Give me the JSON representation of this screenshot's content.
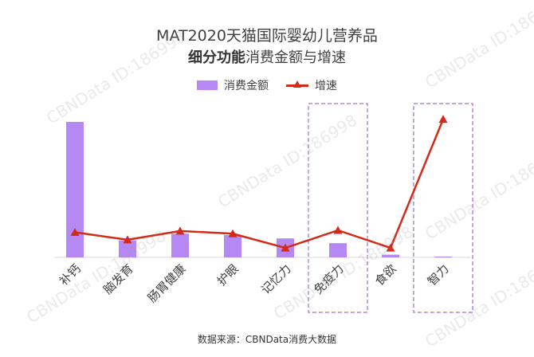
{
  "title_line1": "MAT2020天猫国际婴幼儿营养品",
  "title_line2_bold": "细分功能",
  "title_line2_rest": "消费金额与增速",
  "watermark_text": "CBNData ID:186998",
  "source": "数据来源：CBNData消费大数据",
  "colors": {
    "bar": "#b588f3",
    "line": "#d42a1a",
    "highlight_box": "#9b6fd9"
  },
  "chart_data": {
    "type": "bar+line",
    "categories": [
      "补钙",
      "脑发育",
      "肠胃健康",
      "护眼",
      "记忆力",
      "免疫力",
      "食欲",
      "智力"
    ],
    "series": [
      {
        "name": "消费金额",
        "type": "bar",
        "values": [
          100,
          12.5,
          17.5,
          16.5,
          14,
          10.5,
          2,
          0.5
        ]
      },
      {
        "name": "增速",
        "type": "line",
        "values": [
          18.5,
          13,
          19.5,
          17.5,
          7,
          20,
          7,
          102
        ]
      }
    ],
    "highlighted_categories": [
      "免疫力",
      "智力"
    ],
    "legend_position": "top-center",
    "grid": false
  }
}
